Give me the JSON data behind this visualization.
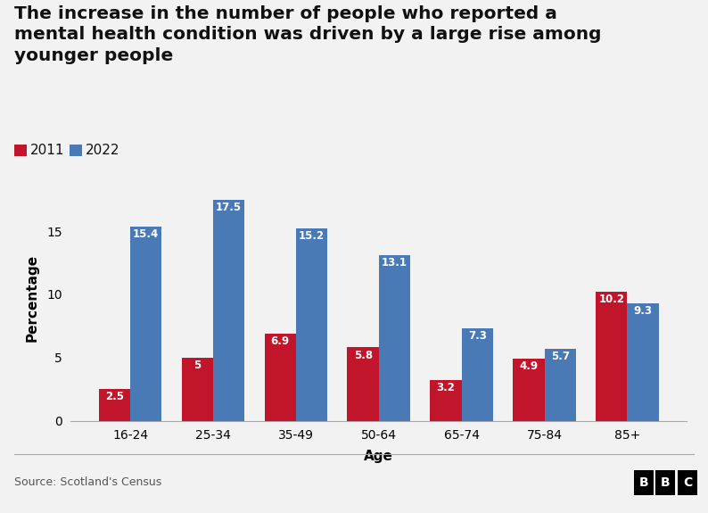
{
  "title": "The increase in the number of people who reported a\nmental health condition was driven by a large rise among\nyounger people",
  "categories": [
    "16-24",
    "25-34",
    "35-49",
    "50-64",
    "65-74",
    "75-84",
    "85+"
  ],
  "values_2011": [
    2.5,
    5.0,
    6.9,
    5.8,
    3.2,
    4.9,
    10.2
  ],
  "values_2022": [
    15.4,
    17.5,
    15.2,
    13.1,
    7.3,
    5.7,
    9.3
  ],
  "labels_2011": [
    "2.5",
    "5",
    "6.9",
    "5.8",
    "3.2",
    "4.9",
    "10.2"
  ],
  "labels_2022": [
    "15.4",
    "17.5",
    "15.2",
    "13.1",
    "7.3",
    "5.7",
    "9.3"
  ],
  "color_2011": "#c0152a",
  "color_2022": "#4a7ab5",
  "ylabel": "Percentage",
  "xlabel": "Age",
  "ylim": [
    0,
    19.5
  ],
  "yticks": [
    0,
    5,
    10,
    15
  ],
  "legend_labels": [
    "2011",
    "2022"
  ],
  "source_text": "Source: Scotland's Census",
  "background_color": "#f2f2f2",
  "bar_width": 0.38,
  "label_fontsize": 8.5,
  "title_fontsize": 14.5,
  "axis_label_fontsize": 11,
  "tick_fontsize": 10,
  "legend_fontsize": 11
}
